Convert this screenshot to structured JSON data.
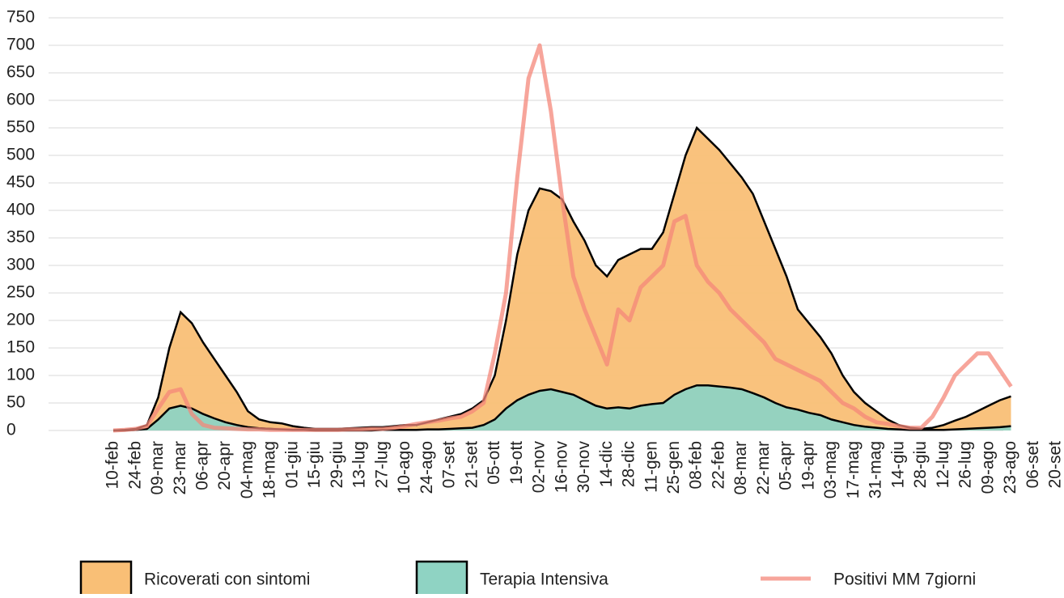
{
  "chart_data": {
    "type": "area",
    "categories": [
      "10-feb",
      null,
      "24-feb",
      null,
      "09-mar",
      null,
      "23-mar",
      null,
      "06-apr",
      null,
      "20-apr",
      null,
      "04-mag",
      null,
      "18-mag",
      null,
      "01-giu",
      null,
      "15-giu",
      null,
      "29-giu",
      null,
      "13-lug",
      null,
      "27-lug",
      null,
      "10-ago",
      null,
      "24-ago",
      null,
      "07-set",
      null,
      "21-set",
      null,
      "05-ott",
      null,
      "19-ott",
      null,
      "02-nov",
      null,
      "16-nov",
      null,
      "30-nov",
      null,
      "14-dic",
      null,
      "28-dic",
      null,
      "11-gen",
      null,
      "25-gen",
      null,
      "08-feb",
      null,
      "22-feb",
      null,
      "08-mar",
      null,
      "22-mar",
      null,
      "05-apr",
      null,
      "19-apr",
      null,
      "03-mag",
      null,
      "17-mag",
      null,
      "31-mag",
      null,
      "14-giu",
      null,
      "28-giu",
      null,
      "12-lug",
      null,
      "26-lug",
      null,
      "09-ago",
      null,
      "23-ago",
      null,
      "06-set",
      null,
      "20-set"
    ],
    "series": [
      {
        "name": "Ricoverati con sintomi",
        "color": "#f9bf76",
        "kind": "area",
        "values": [
          0,
          1,
          3,
          10,
          60,
          150,
          215,
          195,
          160,
          130,
          100,
          70,
          35,
          20,
          15,
          13,
          8,
          5,
          3,
          3,
          3,
          4,
          5,
          6,
          6,
          8,
          10,
          10,
          15,
          20,
          25,
          30,
          40,
          55,
          100,
          200,
          320,
          400,
          440,
          435,
          420,
          380,
          345,
          300,
          280,
          310,
          320,
          330,
          330,
          360,
          430,
          500,
          550,
          530,
          510,
          485,
          460,
          430,
          380,
          330,
          280,
          220,
          195,
          170,
          140,
          100,
          70,
          50,
          35,
          20,
          10,
          5,
          3,
          5,
          10,
          18,
          25,
          35,
          45,
          55,
          62,
          null,
          null,
          null,
          null
        ]
      },
      {
        "name": "Terapia Intensiva",
        "color": "#8fd3c3",
        "kind": "area",
        "values": [
          0,
          0,
          1,
          3,
          20,
          40,
          45,
          40,
          30,
          22,
          15,
          10,
          6,
          4,
          3,
          2,
          1,
          1,
          0,
          0,
          0,
          0,
          0,
          0,
          1,
          1,
          1,
          1,
          2,
          2,
          3,
          4,
          5,
          10,
          20,
          40,
          55,
          65,
          72,
          75,
          70,
          65,
          55,
          45,
          40,
          42,
          40,
          45,
          48,
          50,
          65,
          75,
          82,
          82,
          80,
          78,
          75,
          68,
          60,
          50,
          42,
          38,
          32,
          28,
          20,
          15,
          10,
          7,
          5,
          3,
          2,
          1,
          1,
          1,
          1,
          2,
          3,
          4,
          5,
          6,
          8,
          null,
          null,
          null,
          null
        ]
      },
      {
        "name": "Positivi MM 7giorni",
        "color": "#f4877a",
        "kind": "line",
        "values": [
          0,
          1,
          3,
          8,
          40,
          70,
          75,
          30,
          10,
          5,
          4,
          3,
          2,
          2,
          1,
          1,
          1,
          1,
          1,
          1,
          1,
          2,
          2,
          3,
          3,
          5,
          8,
          12,
          15,
          18,
          22,
          25,
          35,
          50,
          140,
          250,
          460,
          640,
          700,
          580,
          420,
          280,
          220,
          170,
          120,
          220,
          200,
          260,
          280,
          300,
          380,
          390,
          300,
          270,
          250,
          220,
          200,
          180,
          160,
          130,
          120,
          110,
          100,
          90,
          70,
          50,
          40,
          25,
          15,
          12,
          8,
          5,
          5,
          25,
          60,
          100,
          120,
          140,
          140,
          110,
          80,
          null,
          null,
          null,
          null
        ]
      }
    ],
    "ylim": [
      0,
      750
    ],
    "yticks": [
      0,
      50,
      100,
      150,
      200,
      250,
      300,
      350,
      400,
      450,
      500,
      550,
      600,
      650,
      700,
      750
    ],
    "grid": true
  }
}
